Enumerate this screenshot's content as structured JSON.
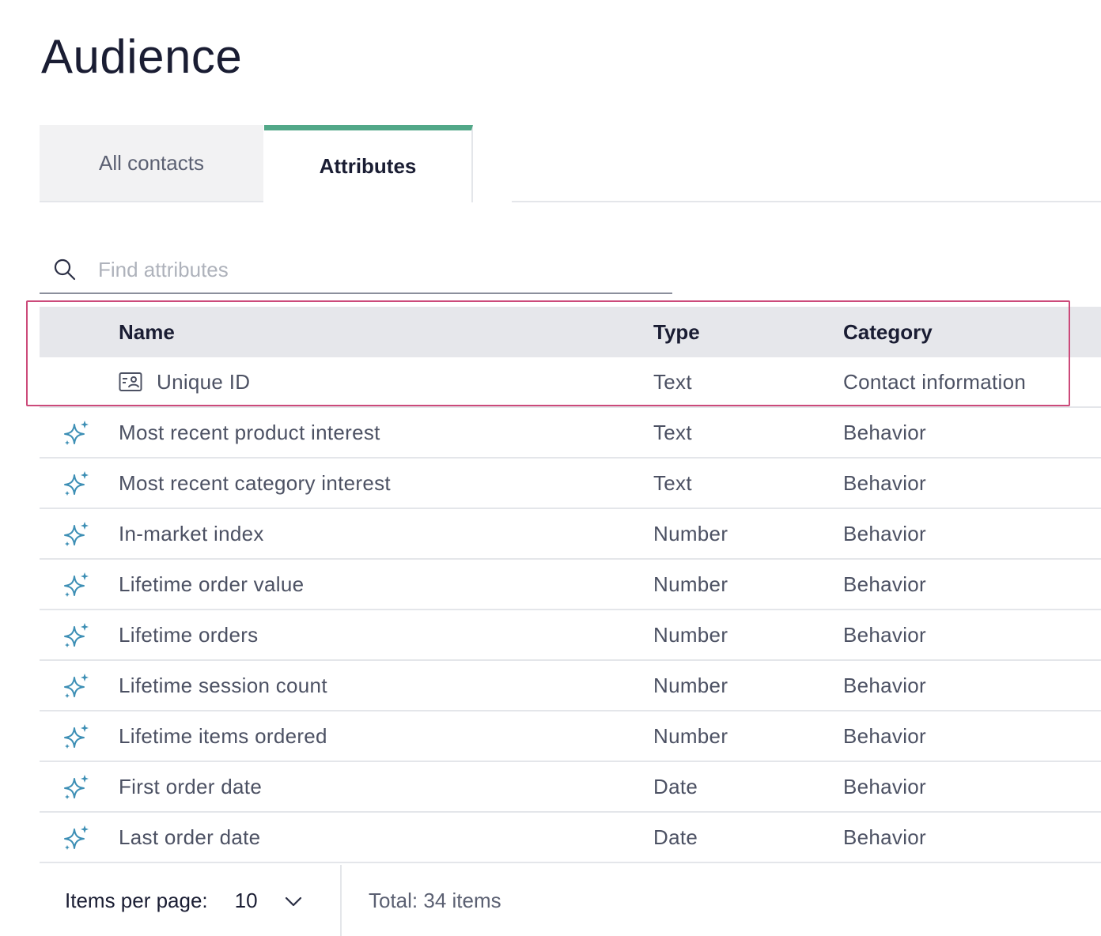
{
  "page": {
    "title": "Audience"
  },
  "tabs": [
    {
      "label": "All contacts",
      "active": false
    },
    {
      "label": "Attributes",
      "active": true
    }
  ],
  "search": {
    "placeholder": "Find attributes",
    "value": ""
  },
  "table": {
    "headers": {
      "name": "Name",
      "type": "Type",
      "category": "Category"
    },
    "rows": [
      {
        "icon": "id-card-icon",
        "name": "Unique ID",
        "type": "Text",
        "category": "Contact information"
      },
      {
        "icon": "sparkle-icon",
        "name": "Most recent product interest",
        "type": "Text",
        "category": "Behavior"
      },
      {
        "icon": "sparkle-icon",
        "name": "Most recent category interest",
        "type": "Text",
        "category": "Behavior"
      },
      {
        "icon": "sparkle-icon",
        "name": "In-market index",
        "type": "Number",
        "category": "Behavior"
      },
      {
        "icon": "sparkle-icon",
        "name": "Lifetime order value",
        "type": "Number",
        "category": "Behavior"
      },
      {
        "icon": "sparkle-icon",
        "name": "Lifetime orders",
        "type": "Number",
        "category": "Behavior"
      },
      {
        "icon": "sparkle-icon",
        "name": "Lifetime session count",
        "type": "Number",
        "category": "Behavior"
      },
      {
        "icon": "sparkle-icon",
        "name": "Lifetime items ordered",
        "type": "Number",
        "category": "Behavior"
      },
      {
        "icon": "sparkle-icon",
        "name": "First order date",
        "type": "Date",
        "category": "Behavior"
      },
      {
        "icon": "sparkle-icon",
        "name": "Last order date",
        "type": "Date",
        "category": "Behavior"
      }
    ]
  },
  "pagination": {
    "per_page_label": "Items per page:",
    "per_page_value": "10",
    "total_text": "Total: 34 items"
  },
  "colors": {
    "accent_tab": "#52a888",
    "highlight_border": "#cc4a7a",
    "sparkle_icon": "#3d8fb5"
  }
}
